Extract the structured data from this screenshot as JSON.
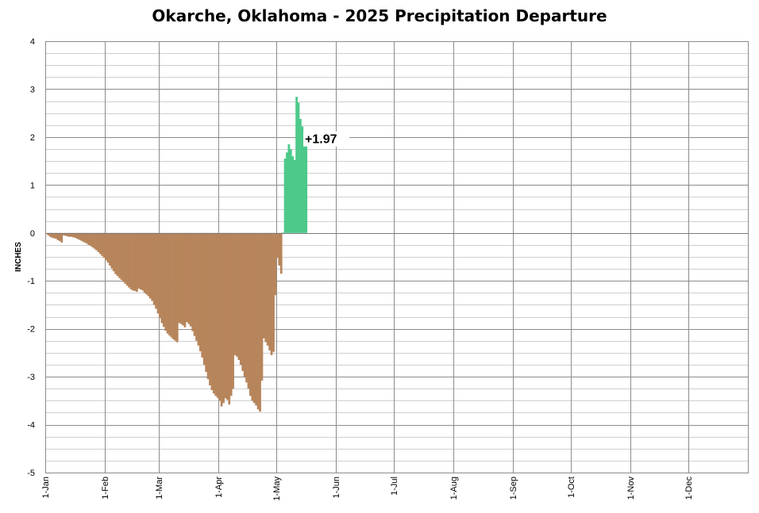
{
  "chart_data": {
    "type": "bar",
    "title": "Okarche, Oklahoma - 2025 Precipitation Departure",
    "ylabel": "INCHES",
    "xlabel": "",
    "ylim": [
      -5,
      4
    ],
    "yticks": [
      4,
      3,
      2,
      1,
      0,
      -1,
      -2,
      -3,
      -4,
      -5
    ],
    "y_minor_step": 0.25,
    "x_unit": "day of year",
    "xlim_days": [
      1,
      366
    ],
    "month_ticks": [
      {
        "label": "1-Jan",
        "day": 1
      },
      {
        "label": "1-Feb",
        "day": 32
      },
      {
        "label": "1-Mar",
        "day": 60
      },
      {
        "label": "1-Apr",
        "day": 91
      },
      {
        "label": "1-May",
        "day": 121
      },
      {
        "label": "1-Jun",
        "day": 152
      },
      {
        "label": "1-Jul",
        "day": 182
      },
      {
        "label": "1-Aug",
        "day": 213
      },
      {
        "label": "1-Sep",
        "day": 244
      },
      {
        "label": "1-Oct",
        "day": 274
      },
      {
        "label": "1-Nov",
        "day": 305
      },
      {
        "label": "1-Dec",
        "day": 335
      }
    ],
    "grid": true,
    "positive_color": "#4dc98a",
    "negative_color": "#b7855b",
    "annotation": {
      "text": "+1.97",
      "day": 133,
      "value": 1.97
    },
    "series": [
      {
        "values": [
          -0.02,
          -0.05,
          -0.08,
          -0.1,
          -0.11,
          -0.12,
          -0.15,
          -0.17,
          -0.2,
          -0.05,
          -0.06,
          -0.07,
          -0.08,
          -0.08,
          -0.09,
          -0.1,
          -0.12,
          -0.14,
          -0.16,
          -0.18,
          -0.2,
          -0.22,
          -0.25,
          -0.27,
          -0.3,
          -0.33,
          -0.36,
          -0.4,
          -0.44,
          -0.48,
          -0.52,
          -0.57,
          -0.62,
          -0.68,
          -0.74,
          -0.8,
          -0.86,
          -0.9,
          -0.94,
          -0.98,
          -1.02,
          -1.06,
          -1.1,
          -1.14,
          -1.18,
          -1.2,
          -1.21,
          -1.23,
          -1.16,
          -1.18,
          -1.2,
          -1.25,
          -1.28,
          -1.32,
          -1.37,
          -1.42,
          -1.5,
          -1.58,
          -1.68,
          -1.78,
          -1.88,
          -1.96,
          -2.04,
          -2.1,
          -2.14,
          -2.18,
          -2.22,
          -2.25,
          -2.28,
          -1.88,
          -1.9,
          -1.93,
          -1.97,
          -1.86,
          -1.9,
          -1.95,
          -2.05,
          -2.15,
          -2.25,
          -2.35,
          -2.47,
          -2.6,
          -2.75,
          -2.9,
          -3.05,
          -3.18,
          -3.28,
          -3.35,
          -3.4,
          -3.44,
          -3.5,
          -3.62,
          -3.55,
          -3.45,
          -3.48,
          -3.58,
          -3.4,
          -3.25,
          -2.55,
          -2.58,
          -2.65,
          -2.75,
          -2.88,
          -3.0,
          -3.12,
          -3.25,
          -3.4,
          -3.5,
          -3.55,
          -3.6,
          -3.68,
          -3.73,
          -3.08,
          -2.2,
          -2.28,
          -2.35,
          -2.45,
          -2.55,
          -2.48,
          -1.3,
          -0.52,
          -0.68,
          -0.85,
          0.01,
          1.55,
          1.68,
          1.85,
          1.75,
          1.6,
          1.52,
          2.84,
          2.72,
          2.38,
          2.22,
          2.07,
          1.97
        ]
      }
    ]
  }
}
